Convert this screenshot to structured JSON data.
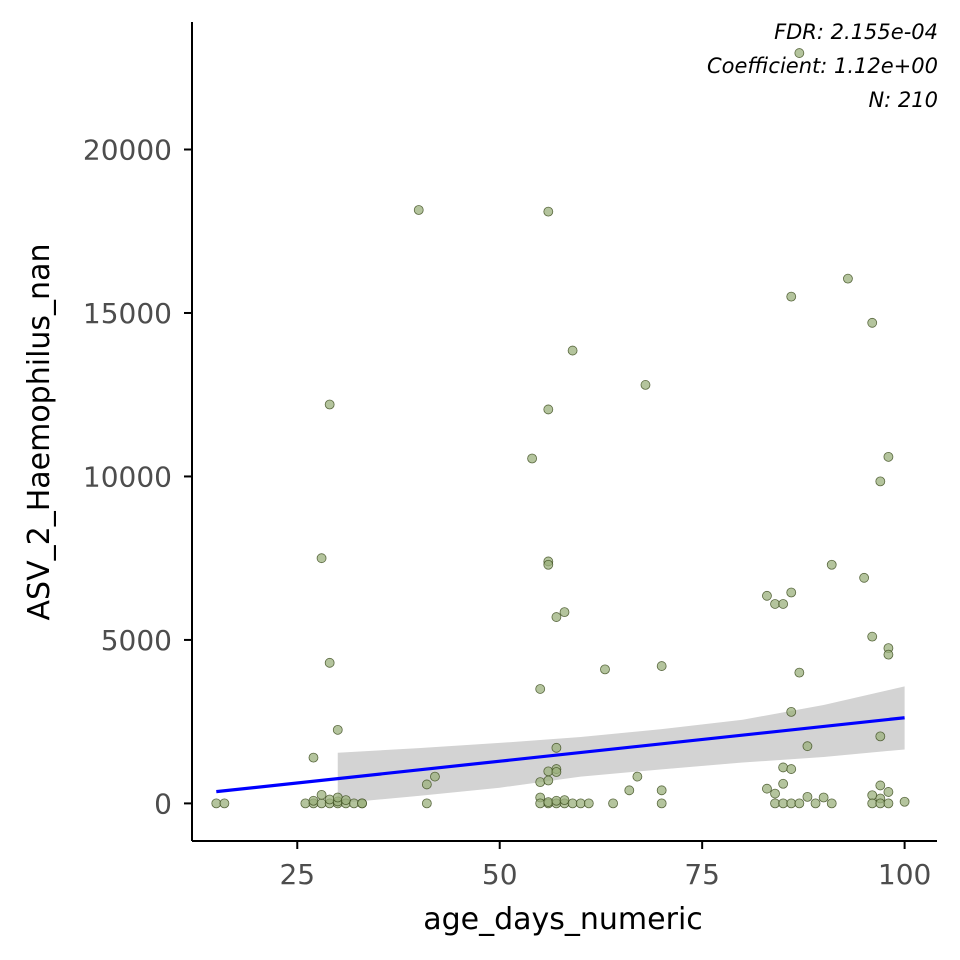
{
  "chart_data": {
    "type": "scatter",
    "xlabel": "age_days_numeric",
    "ylabel": "ASV_2_Haemophilus_nan",
    "xlim": [
      12,
      104
    ],
    "ylim": [
      -1150,
      23900
    ],
    "x_ticks": [
      25,
      50,
      75,
      100
    ],
    "y_ticks": [
      0,
      5000,
      10000,
      15000,
      20000
    ],
    "grid": false,
    "annotations": [
      "FDR: 2.155e-04",
      "Coefficient: 1.12e+00",
      "N: 210"
    ],
    "colors": {
      "point_fill": "#9bb07c",
      "point_stroke": "#3a4a1c",
      "fit_line": "#0000ff",
      "ci_band": "#d3d3d3",
      "axis": "#000000"
    },
    "fit": {
      "x": [
        15,
        100
      ],
      "y": [
        360,
        2620
      ]
    },
    "confidence_band": {
      "x": [
        30,
        40,
        50,
        60,
        70,
        80,
        90,
        100
      ],
      "lower": [
        0,
        230,
        480,
        820,
        1040,
        1250,
        1420,
        1650
      ],
      "upper": [
        1550,
        1690,
        1850,
        2030,
        2270,
        2560,
        3010,
        3580
      ]
    },
    "points": [
      [
        15,
        0
      ],
      [
        16,
        0
      ],
      [
        26,
        0
      ],
      [
        27,
        0
      ],
      [
        27,
        80
      ],
      [
        28,
        0
      ],
      [
        28,
        260
      ],
      [
        29,
        0
      ],
      [
        29,
        120
      ],
      [
        30,
        0
      ],
      [
        30,
        60
      ],
      [
        31,
        0
      ],
      [
        32,
        0
      ],
      [
        33,
        0
      ],
      [
        33,
        0
      ],
      [
        27,
        1400
      ],
      [
        28,
        7500
      ],
      [
        29,
        4300
      ],
      [
        29,
        12200
      ],
      [
        30,
        2250
      ],
      [
        30,
        180
      ],
      [
        31,
        100
      ],
      [
        40,
        18150
      ],
      [
        41,
        0
      ],
      [
        41,
        580
      ],
      [
        42,
        820
      ],
      [
        54,
        10550
      ],
      [
        55,
        3500
      ],
      [
        55,
        180
      ],
      [
        55,
        0
      ],
      [
        55,
        650
      ],
      [
        56,
        0
      ],
      [
        56,
        40
      ],
      [
        56,
        980
      ],
      [
        56,
        18100
      ],
      [
        56,
        12050
      ],
      [
        56,
        7400
      ],
      [
        56,
        7300
      ],
      [
        56,
        700
      ],
      [
        57,
        0
      ],
      [
        57,
        80
      ],
      [
        57,
        1050
      ],
      [
        57,
        960
      ],
      [
        57,
        1700
      ],
      [
        57,
        5700
      ],
      [
        58,
        5850
      ],
      [
        58,
        0
      ],
      [
        58,
        100
      ],
      [
        59,
        13850
      ],
      [
        59,
        0
      ],
      [
        60,
        0
      ],
      [
        61,
        0
      ],
      [
        63,
        4100
      ],
      [
        64,
        0
      ],
      [
        66,
        400
      ],
      [
        67,
        820
      ],
      [
        68,
        12800
      ],
      [
        70,
        4200
      ],
      [
        70,
        400
      ],
      [
        70,
        0
      ],
      [
        83,
        6350
      ],
      [
        83,
        450
      ],
      [
        84,
        6100
      ],
      [
        84,
        300
      ],
      [
        84,
        0
      ],
      [
        85,
        6100
      ],
      [
        85,
        1100
      ],
      [
        85,
        600
      ],
      [
        85,
        0
      ],
      [
        86,
        15500
      ],
      [
        86,
        6450
      ],
      [
        86,
        2800
      ],
      [
        86,
        1050
      ],
      [
        86,
        0
      ],
      [
        87,
        22950
      ],
      [
        87,
        4000
      ],
      [
        87,
        0
      ],
      [
        88,
        1750
      ],
      [
        88,
        200
      ],
      [
        89,
        0
      ],
      [
        90,
        180
      ],
      [
        91,
        7300
      ],
      [
        91,
        0
      ],
      [
        93,
        16050
      ],
      [
        95,
        6900
      ],
      [
        96,
        14700
      ],
      [
        96,
        5100
      ],
      [
        96,
        250
      ],
      [
        96,
        0
      ],
      [
        97,
        9850
      ],
      [
        97,
        2050
      ],
      [
        97,
        550
      ],
      [
        97,
        150
      ],
      [
        97,
        0
      ],
      [
        98,
        10600
      ],
      [
        98,
        4750
      ],
      [
        98,
        4550
      ],
      [
        98,
        350
      ],
      [
        98,
        0
      ],
      [
        100,
        50
      ]
    ]
  }
}
